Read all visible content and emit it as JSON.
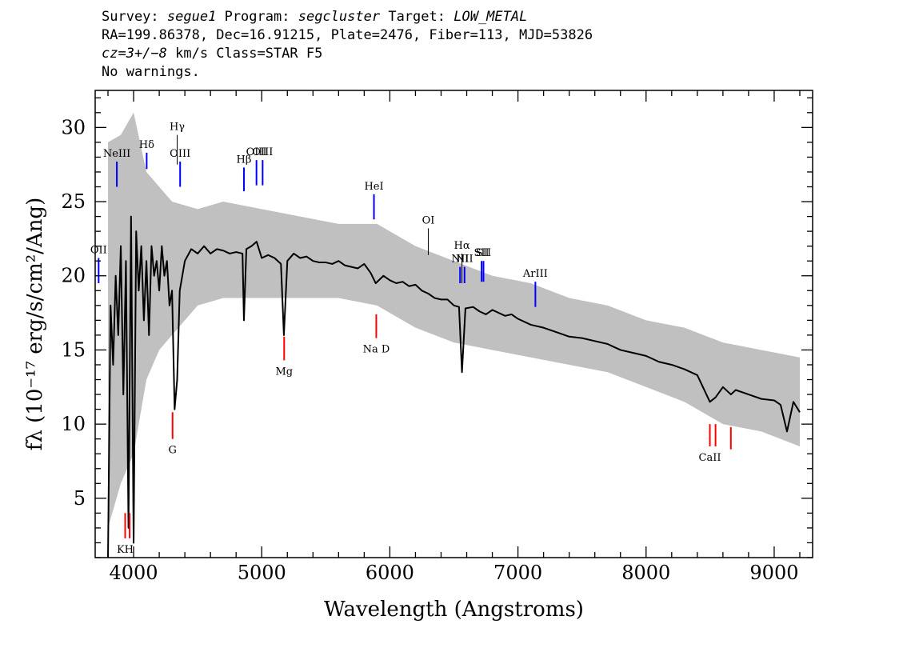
{
  "header": {
    "survey_label": "Survey:",
    "survey": "segue1",
    "program_label": "Program:",
    "program": "segcluster",
    "target_label": "Target:",
    "target": "LOW_METAL",
    "line2": "RA=199.86378, Dec=16.91215, Plate=2476, Fiber=113, MJD=53826",
    "cz": "cz=3+/−8",
    "cz_rest": " km/s Class=STAR F5",
    "warnings": "No warnings."
  },
  "chart_data": {
    "type": "line",
    "xlabel": "Wavelength (Angstroms)",
    "ylabel": "fλ (10⁻¹⁷ erg/s/cm²/Ang)",
    "xlim": [
      3700,
      9300
    ],
    "ylim": [
      1,
      32.5
    ],
    "xticks": [
      4000,
      5000,
      6000,
      7000,
      8000,
      9000
    ],
    "yticks": [
      5,
      10,
      15,
      20,
      25,
      30
    ],
    "colors": {
      "flux": "#000000",
      "noise_band": "#c0c0c0",
      "emission": "#0000ff",
      "absorption": "#ff0000",
      "sky": "#000000"
    },
    "series": [
      {
        "role": "smoothed flux",
        "x": [
          3800,
          3820,
          3840,
          3860,
          3880,
          3900,
          3920,
          3940,
          3960,
          3980,
          4000,
          4020,
          4040,
          4060,
          4080,
          4100,
          4120,
          4140,
          4160,
          4180,
          4200,
          4220,
          4240,
          4260,
          4280,
          4300,
          4320,
          4340,
          4360,
          4380,
          4400,
          4450,
          4500,
          4550,
          4600,
          4650,
          4700,
          4750,
          4800,
          4850,
          4861,
          4880,
          4920,
          4960,
          5000,
          5050,
          5100,
          5150,
          5173,
          5200,
          5250,
          5300,
          5350,
          5400,
          5450,
          5500,
          5550,
          5600,
          5650,
          5700,
          5750,
          5800,
          5850,
          5890,
          5950,
          6000,
          6050,
          6100,
          6150,
          6200,
          6250,
          6300,
          6350,
          6400,
          6450,
          6500,
          6540,
          6563,
          6590,
          6650,
          6700,
          6750,
          6800,
          6850,
          6900,
          6950,
          7000,
          7100,
          7200,
          7300,
          7400,
          7500,
          7600,
          7700,
          7800,
          7900,
          8000,
          8100,
          8200,
          8300,
          8400,
          8498,
          8542,
          8600,
          8662,
          8700,
          8800,
          8900,
          9000,
          9050,
          9100,
          9150,
          9200
        ],
        "values": [
          1,
          18,
          14,
          20,
          16,
          22,
          12,
          21,
          3,
          24,
          2,
          23,
          19,
          22,
          17,
          21,
          16,
          22,
          20,
          21,
          19,
          22,
          20,
          21,
          18,
          19,
          11,
          13,
          19,
          20,
          21,
          21.8,
          21.5,
          22,
          21.5,
          21.8,
          21.7,
          21.5,
          21.6,
          21.5,
          17,
          21.8,
          22,
          22.3,
          21.2,
          21.4,
          21.2,
          20.8,
          16,
          21,
          21.5,
          21.2,
          21.3,
          21,
          20.9,
          20.9,
          20.8,
          21,
          20.7,
          20.6,
          20.5,
          20.8,
          20.2,
          19.5,
          20,
          19.7,
          19.5,
          19.6,
          19.3,
          19.4,
          19,
          18.8,
          18.5,
          18.4,
          18.4,
          18,
          17.9,
          13.5,
          17.8,
          17.9,
          17.6,
          17.4,
          17.7,
          17.5,
          17.3,
          17.4,
          17.1,
          16.7,
          16.5,
          16.2,
          15.9,
          15.8,
          15.6,
          15.4,
          15,
          14.8,
          14.6,
          14.2,
          14,
          13.7,
          13.3,
          11.5,
          11.8,
          12.5,
          12,
          12.3,
          12,
          11.7,
          11.6,
          11.3,
          9.5,
          11.5,
          10.8
        ]
      }
    ],
    "noise_band": {
      "x": [
        3800,
        3900,
        4000,
        4100,
        4200,
        4300,
        4500,
        4700,
        5000,
        5300,
        5600,
        5900,
        6200,
        6500,
        6800,
        7100,
        7400,
        7700,
        8000,
        8300,
        8600,
        8900,
        9200
      ],
      "upper": [
        29,
        29.5,
        31,
        27,
        26,
        25,
        24.5,
        25,
        24.5,
        24,
        23.5,
        23.5,
        22,
        21,
        20,
        19.5,
        18.5,
        18,
        17,
        16.5,
        15.5,
        15,
        14.5
      ],
      "lower": [
        3,
        6,
        8,
        13,
        15,
        16,
        18,
        18.5,
        18.5,
        18.5,
        18.5,
        18,
        16.5,
        15.5,
        15,
        14.5,
        14,
        13.5,
        12.5,
        11.5,
        10,
        9.5,
        8.5
      ]
    },
    "lines": {
      "emission": [
        {
          "label": "OII",
          "x": 3727,
          "ybot": 19.5,
          "ytop": 21.2
        },
        {
          "label": "NeIII",
          "x": 3869,
          "ybot": 26,
          "ytop": 27.7
        },
        {
          "label": "Hδ",
          "x": 4102,
          "ybot": 27.2,
          "ytop": 28.3
        },
        {
          "label": "OIII",
          "x": 4363,
          "ybot": 26,
          "ytop": 27.7
        },
        {
          "label": "Hβ",
          "x": 4861,
          "ybot": 25.7,
          "ytop": 27.3
        },
        {
          "label": "OIII",
          "x": 4959,
          "ybot": 26.1,
          "ytop": 27.8
        },
        {
          "label": "OIII",
          "x": 5007,
          "ybot": 26.1,
          "ytop": 27.8
        },
        {
          "label": "HeI",
          "x": 5876,
          "ybot": 23.8,
          "ytop": 25.5
        },
        {
          "label": "NII",
          "x": 6548,
          "ybot": 19.5,
          "ytop": 20.6
        },
        {
          "label": "NII",
          "x": 6583,
          "ybot": 19.5,
          "ytop": 20.6
        },
        {
          "label": "SII",
          "x": 6716,
          "ybot": 19.6,
          "ytop": 21
        },
        {
          "label": "SII",
          "x": 6731,
          "ybot": 19.6,
          "ytop": 21
        },
        {
          "label": "ArIII",
          "x": 7136,
          "ybot": 17.9,
          "ytop": 19.6
        }
      ],
      "sky": [
        {
          "label": "Hγ",
          "x": 4340,
          "ybot": 27.5,
          "ytop": 29.5
        },
        {
          "label": "OI",
          "x": 6300,
          "ybot": 21.4,
          "ytop": 23.2
        },
        {
          "label": "Hα",
          "x": 6563,
          "ybot": 19.5,
          "ytop": 21.5
        }
      ],
      "absorption": [
        {
          "label": "KH",
          "x": 3934,
          "ybot": 2.3,
          "ytop": 4
        },
        {
          "label": "",
          "x": 3969,
          "ybot": 2.3,
          "ytop": 4
        },
        {
          "label": "G",
          "x": 4304,
          "ybot": 9,
          "ytop": 10.8
        },
        {
          "label": "Mg",
          "x": 5175,
          "ybot": 14.3,
          "ytop": 15.9
        },
        {
          "label": "Na D",
          "x": 5894,
          "ybot": 15.8,
          "ytop": 17.4
        },
        {
          "label": "CaII",
          "x": 8498,
          "ybot": 8.5,
          "ytop": 10
        },
        {
          "label": "",
          "x": 8542,
          "ybot": 8.5,
          "ytop": 10
        },
        {
          "label": "",
          "x": 8662,
          "ybot": 8.3,
          "ytop": 9.8
        }
      ]
    }
  }
}
